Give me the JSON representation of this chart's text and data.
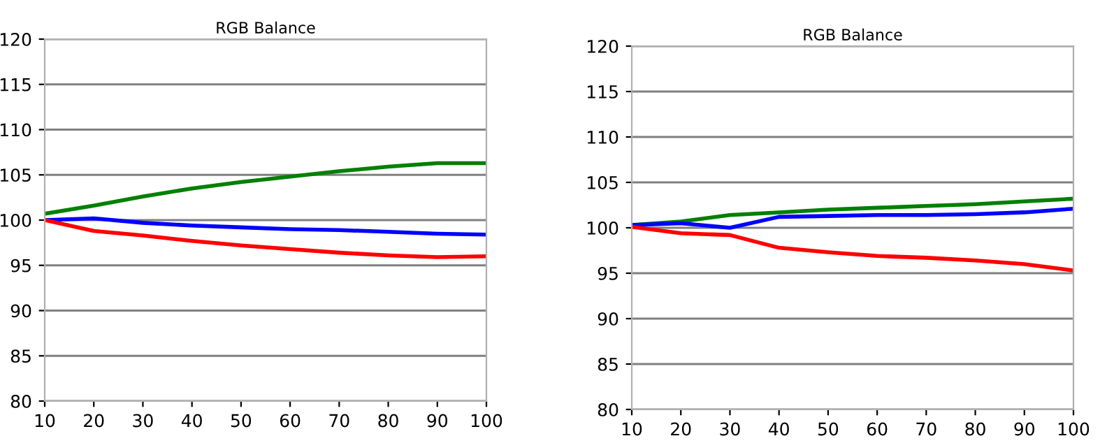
{
  "chart_data": [
    {
      "type": "line",
      "title": "RGB Balance",
      "x": [
        10,
        20,
        30,
        40,
        50,
        60,
        70,
        80,
        90,
        100
      ],
      "xlim": [
        10,
        100
      ],
      "xticks": [
        10,
        20,
        30,
        40,
        50,
        60,
        70,
        80,
        90,
        100
      ],
      "ylim": [
        80,
        120
      ],
      "yticks": [
        80,
        85,
        90,
        95,
        100,
        105,
        110,
        115,
        120
      ],
      "grid": "y",
      "marker": "none",
      "line_style": "solid",
      "series": [
        {
          "color": "#008000",
          "values": [
            100.7,
            101.6,
            102.6,
            103.5,
            104.2,
            104.8,
            105.4,
            105.9,
            106.3,
            106.3
          ]
        },
        {
          "color": "#0000ff",
          "values": [
            100.0,
            100.2,
            99.7,
            99.4,
            99.2,
            99.0,
            98.9,
            98.7,
            98.5,
            98.4
          ]
        },
        {
          "color": "#ff0000",
          "values": [
            100.0,
            98.8,
            98.3,
            97.7,
            97.2,
            96.8,
            96.4,
            96.1,
            95.9,
            96.0
          ]
        }
      ]
    },
    {
      "type": "line",
      "title": "RGB Balance",
      "x": [
        10,
        20,
        30,
        40,
        50,
        60,
        70,
        80,
        90,
        100
      ],
      "xlim": [
        10,
        100
      ],
      "xticks": [
        10,
        20,
        30,
        40,
        50,
        60,
        70,
        80,
        90,
        100
      ],
      "ylim": [
        80,
        120
      ],
      "yticks": [
        80,
        85,
        90,
        95,
        100,
        105,
        110,
        115,
        120
      ],
      "grid": "y",
      "marker": "none",
      "line_style": "solid",
      "series": [
        {
          "color": "#008000",
          "values": [
            100.3,
            100.7,
            101.4,
            101.7,
            102.0,
            102.2,
            102.4,
            102.6,
            102.9,
            103.2
          ]
        },
        {
          "color": "#0000ff",
          "values": [
            100.3,
            100.5,
            100.0,
            101.2,
            101.3,
            101.4,
            101.4,
            101.5,
            101.7,
            102.1
          ]
        },
        {
          "color": "#ff0000",
          "values": [
            100.1,
            99.4,
            99.2,
            97.8,
            97.3,
            96.9,
            96.7,
            96.4,
            96.0,
            95.3
          ]
        }
      ]
    }
  ]
}
